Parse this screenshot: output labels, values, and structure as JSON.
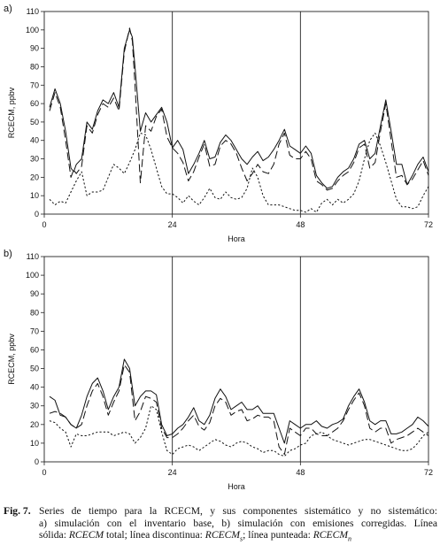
{
  "chart_data": [
    {
      "type": "line",
      "panel_label": "a)",
      "xlabel": "Hora",
      "ylabel": "RCECM, ppbv",
      "xlim": [
        0,
        72
      ],
      "ylim": [
        0,
        110
      ],
      "xticks": [
        "0",
        "24",
        "48",
        "72"
      ],
      "yticks": [
        "0",
        "10",
        "20",
        "30",
        "40",
        "50",
        "60",
        "70",
        "80",
        "90",
        "100",
        "110"
      ],
      "vlines": [
        24,
        48
      ],
      "series": [
        {
          "style": "solid",
          "x": [
            1,
            2,
            3,
            4,
            5,
            5.5,
            6,
            7,
            8,
            9,
            10,
            11,
            12,
            13,
            14,
            15,
            16,
            16.5,
            17,
            18,
            19,
            20,
            21,
            22,
            23,
            24,
            25,
            26,
            27,
            28,
            29,
            30,
            31,
            32,
            33,
            34,
            35,
            36,
            37,
            38,
            39,
            40,
            41,
            42,
            43,
            44,
            45,
            46,
            47,
            48,
            49,
            50,
            51,
            52,
            53,
            54,
            55,
            56,
            57,
            58,
            59,
            60,
            61,
            62,
            63,
            64,
            65,
            66,
            67,
            68,
            69,
            70,
            71,
            72
          ],
          "y": [
            58,
            68,
            60,
            45,
            25,
            23,
            27,
            30,
            50,
            46,
            56,
            62,
            60,
            66,
            58,
            90,
            100,
            96,
            80,
            45,
            55,
            50,
            54,
            58,
            50,
            36,
            40,
            35,
            22,
            27,
            33,
            40,
            30,
            31,
            39,
            43,
            40,
            35,
            30,
            27,
            31,
            34,
            29,
            31,
            35,
            40,
            46,
            37,
            35,
            33,
            37,
            33,
            21,
            17,
            14,
            15,
            20,
            23,
            25,
            30,
            38,
            40,
            30,
            33,
            48,
            62,
            45,
            27,
            27,
            16,
            21,
            27,
            31,
            23
          ]
        },
        {
          "style": "dashed",
          "x": [
            1,
            2,
            3,
            4,
            5,
            5.5,
            6,
            7,
            8,
            9,
            10,
            11,
            12,
            13,
            14,
            15,
            16,
            16.5,
            17,
            18,
            19,
            20,
            21,
            22,
            23,
            24,
            25,
            26,
            27,
            28,
            29,
            30,
            31,
            32,
            33,
            34,
            35,
            36,
            37,
            38,
            39,
            40,
            41,
            42,
            43,
            44,
            45,
            46,
            47,
            48,
            49,
            50,
            51,
            52,
            53,
            54,
            55,
            56,
            57,
            58,
            59,
            60,
            61,
            62,
            63,
            64,
            65,
            66,
            67,
            68,
            69,
            70,
            71,
            72
          ],
          "y": [
            56,
            66,
            58,
            40,
            20,
            24,
            22,
            26,
            48,
            44,
            54,
            60,
            58,
            63,
            56,
            88,
            101,
            94,
            70,
            17,
            48,
            45,
            53,
            57,
            42,
            36,
            33,
            28,
            18,
            23,
            31,
            38,
            26,
            27,
            37,
            40,
            38,
            33,
            25,
            18,
            22,
            27,
            23,
            22,
            27,
            38,
            44,
            32,
            30,
            30,
            34,
            30,
            18,
            16,
            13,
            14,
            18,
            21,
            23,
            28,
            36,
            38,
            25,
            28,
            45,
            60,
            40,
            20,
            21,
            16,
            19,
            24,
            29,
            21
          ]
        },
        {
          "style": "dotted",
          "x": [
            1,
            2,
            3,
            4,
            5,
            6,
            7,
            8,
            9,
            10,
            11,
            12,
            13,
            14,
            15,
            16,
            17,
            18,
            19,
            20,
            21,
            22,
            23,
            24,
            25,
            26,
            27,
            28,
            29,
            30,
            31,
            32,
            33,
            34,
            35,
            36,
            37,
            38,
            39,
            40,
            41,
            42,
            43,
            44,
            45,
            46,
            47,
            48,
            49,
            50,
            51,
            52,
            53,
            54,
            55,
            56,
            57,
            58,
            59,
            60,
            61,
            62,
            63,
            64,
            65,
            66,
            67,
            68,
            69,
            70,
            71,
            72
          ],
          "y": [
            8,
            5,
            7,
            6,
            12,
            18,
            23,
            10,
            12,
            12,
            13,
            20,
            27,
            25,
            22,
            28,
            35,
            44,
            43,
            35,
            25,
            15,
            11,
            11,
            9,
            6,
            10,
            7,
            5,
            9,
            14,
            9,
            8,
            12,
            9,
            8,
            9,
            14,
            25,
            20,
            10,
            5,
            5,
            5,
            4,
            3,
            2,
            2,
            1,
            3,
            1,
            6,
            8,
            5,
            8,
            6,
            8,
            11,
            18,
            30,
            40,
            44,
            37,
            28,
            18,
            8,
            4,
            4,
            3,
            4,
            10,
            15
          ]
        }
      ]
    },
    {
      "type": "line",
      "panel_label": "b)",
      "xlabel": "Hora",
      "ylabel": "RCECM, ppbv",
      "xlim": [
        0,
        72
      ],
      "ylim": [
        0,
        110
      ],
      "xticks": [
        "0",
        "24",
        "48",
        "72"
      ],
      "yticks": [
        "0",
        "10",
        "20",
        "30",
        "40",
        "50",
        "60",
        "70",
        "80",
        "90",
        "100",
        "110"
      ],
      "vlines": [
        24,
        48
      ],
      "series": [
        {
          "style": "solid",
          "x": [
            1,
            2,
            3,
            4,
            5,
            6,
            7,
            8,
            9,
            10,
            11,
            12,
            13,
            14,
            15,
            16,
            17,
            18,
            19,
            20,
            21,
            22,
            23,
            24,
            25,
            26,
            27,
            28,
            29,
            30,
            31,
            32,
            33,
            34,
            35,
            36,
            37,
            38,
            39,
            40,
            41,
            42,
            43,
            44,
            45,
            46,
            47,
            48,
            49,
            50,
            51,
            52,
            53,
            54,
            55,
            56,
            57,
            58,
            59,
            60,
            61,
            62,
            63,
            64,
            65,
            66,
            67,
            68,
            69,
            70,
            71,
            72
          ],
          "y": [
            35,
            33,
            25,
            24,
            20,
            18,
            25,
            35,
            42,
            45,
            38,
            28,
            35,
            40,
            55,
            50,
            30,
            35,
            38,
            38,
            36,
            20,
            14,
            15,
            18,
            20,
            24,
            29,
            22,
            20,
            25,
            34,
            39,
            35,
            28,
            30,
            32,
            28,
            28,
            30,
            26,
            26,
            26,
            18,
            10,
            22,
            20,
            18,
            20,
            20,
            22,
            19,
            18,
            20,
            21,
            23,
            30,
            35,
            39,
            32,
            22,
            20,
            22,
            22,
            15,
            15,
            16,
            18,
            20,
            24,
            22,
            19
          ]
        },
        {
          "style": "dashed",
          "x": [
            1,
            2,
            3,
            4,
            5,
            6,
            7,
            8,
            9,
            10,
            11,
            12,
            13,
            14,
            15,
            16,
            17,
            18,
            19,
            20,
            21,
            22,
            23,
            24,
            25,
            26,
            27,
            28,
            29,
            30,
            31,
            32,
            33,
            34,
            35,
            36,
            37,
            38,
            39,
            40,
            41,
            42,
            43,
            44,
            45,
            46,
            47,
            48,
            49,
            50,
            51,
            52,
            53,
            54,
            55,
            56,
            57,
            58,
            59,
            60,
            61,
            62,
            63,
            64,
            65,
            66,
            67,
            68,
            69,
            70,
            71,
            72
          ],
          "y": [
            26,
            27,
            26,
            24,
            20,
            18,
            20,
            30,
            38,
            42,
            35,
            25,
            32,
            38,
            52,
            48,
            22,
            27,
            35,
            34,
            32,
            18,
            13,
            13,
            15,
            18,
            22,
            25,
            19,
            17,
            21,
            30,
            34,
            32,
            25,
            27,
            28,
            22,
            23,
            25,
            24,
            24,
            22,
            8,
            4,
            18,
            16,
            14,
            18,
            18,
            15,
            14,
            14,
            16,
            18,
            22,
            28,
            33,
            37,
            30,
            18,
            16,
            18,
            18,
            10,
            12,
            13,
            14,
            16,
            18,
            16,
            14
          ]
        },
        {
          "style": "dotted",
          "x": [
            1,
            2,
            3,
            4,
            5,
            6,
            7,
            8,
            9,
            10,
            11,
            12,
            13,
            14,
            15,
            16,
            17,
            18,
            19,
            20,
            21,
            22,
            23,
            24,
            25,
            26,
            27,
            28,
            29,
            30,
            31,
            32,
            33,
            34,
            35,
            36,
            37,
            38,
            39,
            40,
            41,
            42,
            43,
            44,
            45,
            46,
            47,
            48,
            49,
            50,
            51,
            52,
            53,
            54,
            55,
            56,
            57,
            58,
            59,
            60,
            61,
            62,
            63,
            64,
            65,
            66,
            67,
            68,
            69,
            70,
            71,
            72
          ],
          "y": [
            22,
            21,
            18,
            16,
            8,
            15,
            14,
            14,
            15,
            16,
            16,
            16,
            14,
            15,
            16,
            15,
            10,
            13,
            18,
            30,
            28,
            16,
            6,
            4,
            7,
            8,
            9,
            8,
            6,
            8,
            10,
            12,
            11,
            9,
            8,
            10,
            11,
            10,
            8,
            7,
            5,
            6,
            6,
            4,
            3,
            6,
            7,
            9,
            10,
            14,
            15,
            16,
            14,
            12,
            11,
            10,
            9,
            10,
            11,
            12,
            12,
            11,
            10,
            9,
            8,
            7,
            6,
            6,
            7,
            10,
            14,
            16
          ]
        }
      ]
    }
  ],
  "caption": {
    "label": "Fig. 7.",
    "lines": [
      [
        {
          "t": "Series de tiempo para la RCECM, y sus componentes sistemático y no sistemático:",
          "i": false
        }
      ],
      [
        {
          "t": "a) simulación con el inventario base, b) simulación con emisiones corregidas. Línea",
          "i": false
        }
      ],
      [
        {
          "t": "sólida: ",
          "i": false
        },
        {
          "t": "RCECM",
          "i": true
        },
        {
          "t": " total; línea discontinua: ",
          "i": false
        },
        {
          "t": "RCECM",
          "i": true
        },
        {
          "t": "s",
          "i": true,
          "sub": true
        },
        {
          "t": "; línea punteada: ",
          "i": false
        },
        {
          "t": "RCECM",
          "i": true
        },
        {
          "t": "n",
          "i": true,
          "sub": true
        }
      ]
    ]
  }
}
